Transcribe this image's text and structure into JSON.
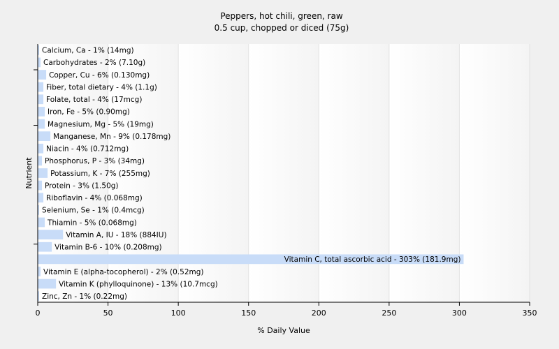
{
  "chart_data": {
    "type": "bar",
    "orientation": "horizontal",
    "title": "Peppers, hot chili, green, raw",
    "subtitle": "0.5 cup, chopped or diced (75g)",
    "xlabel": "% Daily Value",
    "ylabel": "Nutrient",
    "xlim": [
      0,
      350
    ],
    "xticks": [
      0,
      50,
      100,
      150,
      200,
      250,
      300,
      350
    ],
    "grid": true,
    "bar_color": "#c8dcf8",
    "categories": [
      "Calcium, Ca - 1% (14mg)",
      "Carbohydrates - 2% (7.10g)",
      "Copper, Cu - 6% (0.130mg)",
      "Fiber, total dietary - 4% (1.1g)",
      "Folate, total - 4% (17mcg)",
      "Iron, Fe - 5% (0.90mg)",
      "Magnesium, Mg - 5% (19mg)",
      "Manganese, Mn - 9% (0.178mg)",
      "Niacin - 4% (0.712mg)",
      "Phosphorus, P - 3% (34mg)",
      "Potassium, K - 7% (255mg)",
      "Protein - 3% (1.50g)",
      "Riboflavin - 4% (0.068mg)",
      "Selenium, Se - 1% (0.4mcg)",
      "Thiamin - 5% (0.068mg)",
      "Vitamin A, IU - 18% (884IU)",
      "Vitamin B-6 - 10% (0.208mg)",
      "Vitamin C, total ascorbic acid - 303% (181.9mg)",
      "Vitamin E (alpha-tocopherol) - 2% (0.52mg)",
      "Vitamin K (phylloquinone) - 13% (10.7mcg)",
      "Zinc, Zn - 1% (0.22mg)"
    ],
    "values": [
      1,
      2,
      6,
      4,
      4,
      5,
      5,
      9,
      4,
      3,
      7,
      3,
      4,
      1,
      5,
      18,
      10,
      303,
      2,
      13,
      1
    ]
  }
}
